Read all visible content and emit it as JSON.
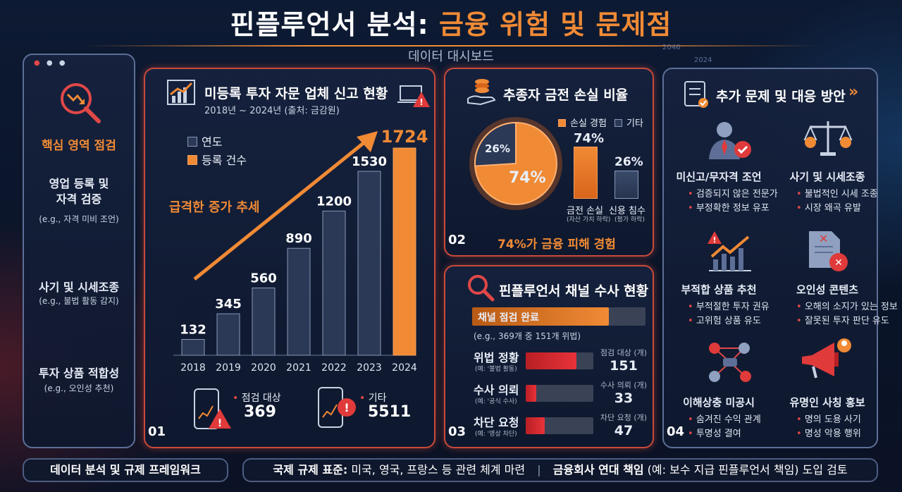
{
  "header": {
    "title_main": "핀플루언서 분석: ",
    "title_accent": "금융 위험 및 문제점",
    "subtitle": "데이터 대시보드",
    "bg_tag_year_a": "2046",
    "bg_tag_year_b": "2024"
  },
  "sidebar": {
    "heading": "핵심 영역 점검",
    "items": [
      {
        "title": "영업 등록 및\n자격 검증",
        "sub": "(e.g., 자격 미비 조언)"
      },
      {
        "title": "사기 및 시세조종",
        "sub": "(e.g., 불법 활동 감지)"
      },
      {
        "title": "투자 상품 적합성",
        "sub": "(e.g., 오인성 추천)"
      }
    ]
  },
  "panel1": {
    "title": "미등록 투자 자문 업체 신고 현황",
    "subtitle": "2018년 ~ 2024년 (출처: 금감원)",
    "legend_year": "연도",
    "legend_count": "등록 건수",
    "trend_label": "급격한 증가 추세",
    "stat1_label": "점검 대상",
    "stat1_value": "369",
    "stat2_label": "기타",
    "stat2_value": "5511",
    "number": "01"
  },
  "chart_data": {
    "type": "bar",
    "categories": [
      "2018",
      "2019",
      "2020",
      "2021",
      "2022",
      "2023",
      "2024"
    ],
    "values": [
      132,
      345,
      560,
      890,
      1200,
      1530,
      1724
    ],
    "highlight_index": 6,
    "colors": {
      "default": "#2b3956",
      "highlight": "#f08a35"
    }
  },
  "panel2": {
    "title": "추종자 금전 손실 비율",
    "legend_loss": "손실 경험",
    "legend_other": "기타",
    "pie_big": "74%",
    "pie_small": "26%",
    "bar_big_value": "74%",
    "bar_small_value": "26%",
    "bar_big_label": "금전 손실",
    "bar_big_sub": "(자산 가치 하락)",
    "bar_small_label": "신용 침수",
    "bar_small_sub": "(평가 하락)",
    "summary": "74%가 금융 피해 경험",
    "number": "02",
    "loss_share": 0.74
  },
  "panel3": {
    "title": "핀플루언서 채널 수사 현황",
    "progress_label": "채널 점검 완료",
    "progress_sub": "(e.g., 369개 중 151개 위법)",
    "rows": [
      {
        "label": "위법 정황",
        "sub": "(예: '불법 활동)",
        "value_label": "점검 대상 (개)",
        "value": "151",
        "fill": 0.75
      },
      {
        "label": "수사 의뢰",
        "sub": "(예: '공식 수사)",
        "value_label": "수사 의뢰 (개)",
        "value": "33",
        "fill": 0.16
      },
      {
        "label": "차단 요청",
        "sub": "(예: '영상 차단)",
        "value_label": "차단 요청 (개)",
        "value": "47",
        "fill": 0.28
      }
    ],
    "number": "03"
  },
  "panel4": {
    "title": "추가 문제 및 대응 방안",
    "items": [
      {
        "title": "미신고/무자격 조언",
        "bullets": [
          "검증되지 않은 전문가",
          "부정확한 정보 유포"
        ]
      },
      {
        "title": "사기 및 시세조종",
        "bullets": [
          "불법적인 시세 조종",
          "시장 왜곡 유발"
        ]
      },
      {
        "title": "부적합 상품 추천",
        "bullets": [
          "부적절한 투자 권유",
          "고위험 상품 유도"
        ]
      },
      {
        "title": "오인성 콘텐츠",
        "bullets": [
          "오해의 소지가 있는 정보",
          "잘못된 투자 판단 유도"
        ]
      },
      {
        "title": "이해상충 미공시",
        "bullets": [
          "숨겨진 수익 관계",
          "투명성 결여"
        ]
      },
      {
        "title": "유명인 사칭 홍보",
        "bullets": [
          "명의 도용 사기",
          "명성 악용 행위"
        ]
      }
    ],
    "number": "04"
  },
  "footer": {
    "left": "데이터 분석 및 규제 프레임워크",
    "right_a": "국제 규제 표준:",
    "right_b": " 미국, 영국, 프랑스 등 관련 체계 마련",
    "right_c": "금융회사 연대 책임",
    "right_d": " (예: 보수 지급 핀플루언서 책임) 도입 검토"
  }
}
